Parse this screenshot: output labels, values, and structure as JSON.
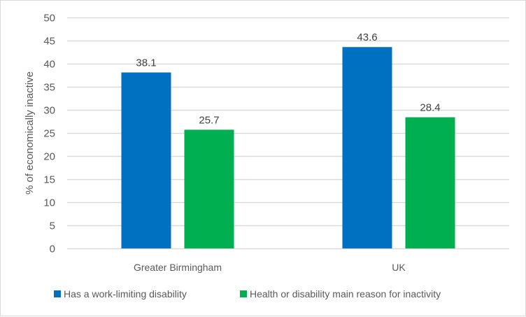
{
  "chart_data": {
    "type": "bar",
    "title": "",
    "xlabel": "",
    "ylabel": "% of economically inactive",
    "ylim": [
      0,
      50
    ],
    "yticks": [
      0,
      5,
      10,
      15,
      20,
      25,
      30,
      35,
      40,
      45,
      50
    ],
    "grid": true,
    "legend_position": "bottom",
    "categories": [
      "Greater Birmingham",
      "UK"
    ],
    "series": [
      {
        "name": "Has a work-limiting disability",
        "color": "#0070C0",
        "values": [
          38.1,
          43.6
        ]
      },
      {
        "name": "Health or disability main reason for inactivity",
        "color": "#00B050",
        "values": [
          25.7,
          28.4
        ]
      }
    ]
  }
}
